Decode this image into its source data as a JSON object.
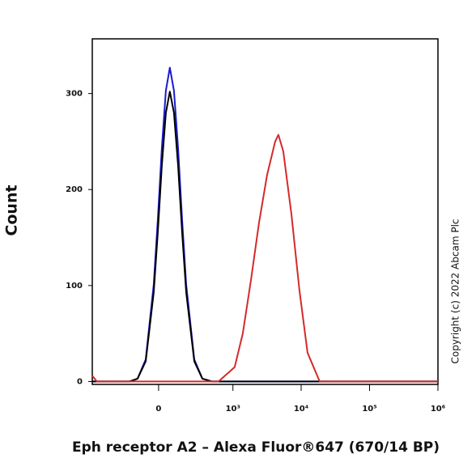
{
  "chart_data": {
    "type": "line",
    "xlabel": "Eph receptor A2 – Alexa Fluor®647 (670/14 BP)",
    "ylabel": "Count",
    "annotation": "Copyright (c) 2022 Abcam Plc",
    "xscale": "biexponential",
    "xlim": [
      -760,
      1000000
    ],
    "ylim": [
      -3,
      357
    ],
    "xticks": [
      0,
      {
        "value": 1000,
        "label": "10³"
      },
      {
        "value": 10000,
        "label": "10⁴"
      },
      {
        "value": 100000,
        "label": "10⁵"
      },
      {
        "value": 1000000,
        "label": "10⁶"
      }
    ],
    "yticks": [
      0,
      100,
      200,
      300
    ],
    "series": [
      {
        "color": "#1a1ad0",
        "x": [
          -760,
          -190,
          -127,
          -74,
          -27,
          -4.5,
          18,
          41,
          64,
          89,
          116,
          145,
          176,
          249,
          341,
          484,
          1000000
        ],
        "values": [
          0,
          0,
          3,
          23,
          101,
          168,
          243,
          303,
          327,
          303,
          243,
          168,
          101,
          23,
          3,
          0,
          0
        ]
      },
      {
        "color": "#000000",
        "x": [
          -760,
          -190,
          -127,
          -74,
          -27,
          -4.5,
          18,
          41,
          64,
          89,
          116,
          145,
          176,
          249,
          341,
          484,
          1000000
        ],
        "values": [
          0,
          0,
          3,
          21,
          93,
          155,
          225,
          280,
          302,
          280,
          225,
          155,
          93,
          21,
          3,
          0,
          0
        ]
      },
      {
        "color": "#d42a2a",
        "x": [
          -760,
          -650,
          609,
          1063,
          1398,
          1837,
          2414,
          3175,
          4174,
          4653,
          5478,
          7194,
          9455,
          12409,
          18662,
          1000000
        ],
        "values": [
          6,
          0,
          0,
          15,
          50,
          105,
          165,
          215,
          250,
          257,
          240,
          175,
          95,
          30,
          0,
          0
        ]
      }
    ]
  }
}
